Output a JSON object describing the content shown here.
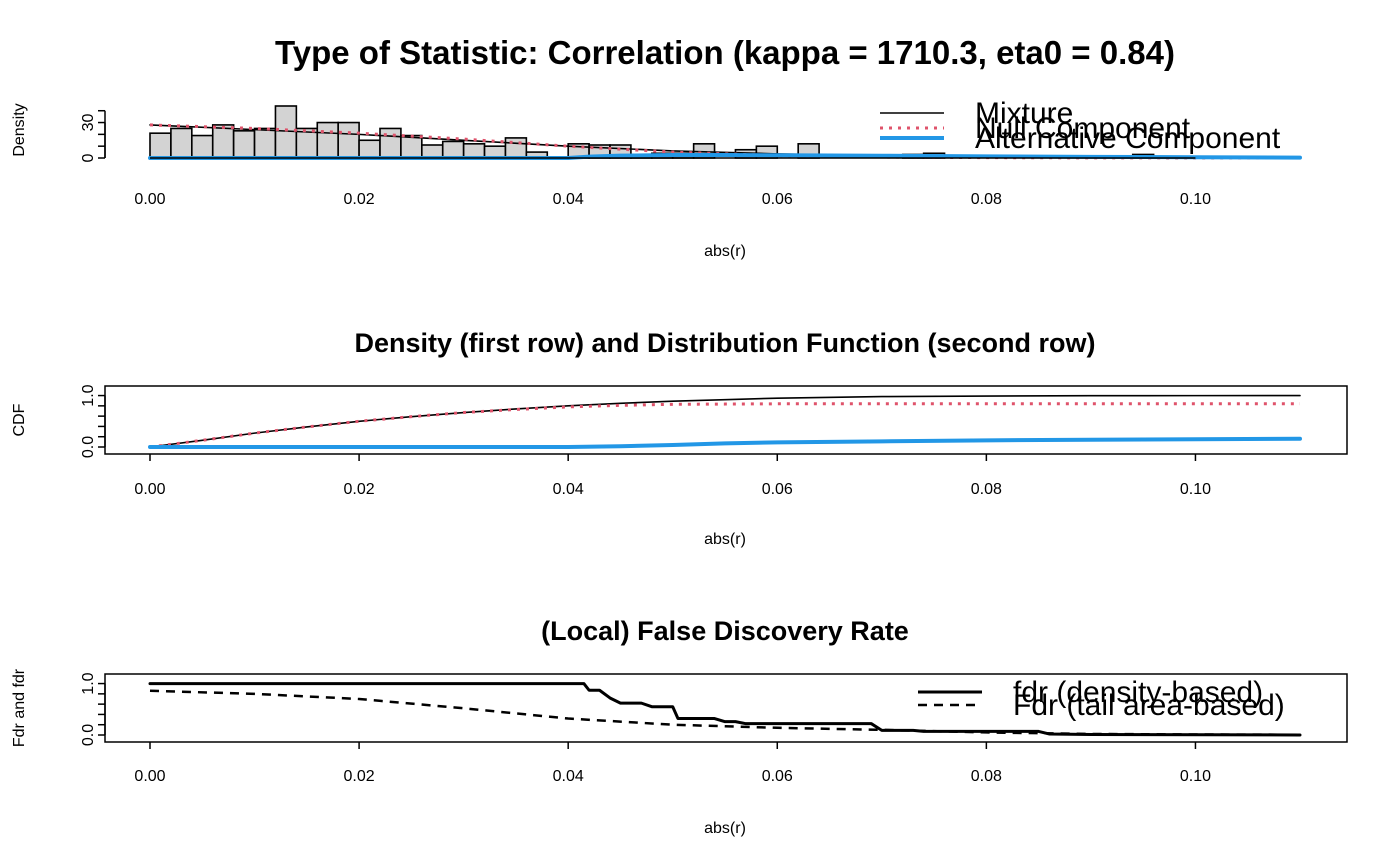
{
  "chart_data": [
    {
      "type": "bar",
      "title": "Type of Statistic: Correlation (kappa = 1710.3, eta0 = 0.84)",
      "xlabel": "abs(r)",
      "ylabel": "Density",
      "xlim": [
        0,
        0.11
      ],
      "ylim": [
        0,
        44
      ],
      "xticks": [
        0.0,
        0.02,
        0.04,
        0.06,
        0.08,
        0.1
      ],
      "xtick_labels": [
        "0.00",
        "0.02",
        "0.04",
        "0.06",
        "0.08",
        "0.10"
      ],
      "yticks": [
        0,
        30
      ],
      "ytick_labels": [
        "0",
        "30"
      ],
      "hist": {
        "bin_width": 0.002,
        "values": [
          21,
          25,
          19,
          28,
          23,
          25,
          44,
          25,
          30,
          30,
          15,
          25,
          19,
          11,
          14,
          12,
          10,
          17,
          5,
          0,
          12,
          11,
          11,
          3,
          4,
          4,
          12,
          0,
          7,
          10,
          0,
          12,
          0,
          0,
          0,
          0,
          3,
          4,
          0,
          0,
          0,
          0,
          0,
          0,
          0,
          0,
          0,
          3,
          0,
          0,
          0,
          0,
          0,
          0,
          1
        ]
      },
      "series": [
        {
          "name": "Mixture",
          "color": "#000000",
          "style": "solid",
          "x": [
            0,
            0.01,
            0.02,
            0.03,
            0.04,
            0.05,
            0.06,
            0.07,
            0.08,
            0.09,
            0.1,
            0.11
          ],
          "y": [
            28,
            24,
            20,
            15,
            10,
            6,
            3.5,
            2,
            1.2,
            0.6,
            0.3,
            0.15
          ]
        },
        {
          "name": "Null Component",
          "color": "#DF536B",
          "style": "dotted",
          "x": [
            0,
            0.01,
            0.02,
            0.03,
            0.04,
            0.05,
            0.06,
            0.07,
            0.08,
            0.09,
            0.1,
            0.11
          ],
          "y": [
            28,
            25,
            21,
            16,
            10,
            5,
            2,
            0.8,
            0.3,
            0.1,
            0.03,
            0.01
          ]
        },
        {
          "name": "Alternative Component",
          "color": "#2297E6",
          "style": "solid",
          "x": [
            0,
            0.04,
            0.042,
            0.045,
            0.05,
            0.055,
            0.06,
            0.07,
            0.08,
            0.09,
            0.1,
            0.11
          ],
          "y": [
            0,
            0,
            1.2,
            2,
            2.5,
            2.5,
            2.3,
            1.9,
            1.4,
            1,
            0.6,
            0.35
          ]
        }
      ],
      "legend": {
        "placement": "top-right",
        "entries": [
          "Mixture",
          "Null Component",
          "Alternative Component"
        ]
      }
    },
    {
      "type": "line",
      "title": "Density (first row) and Distribution Function (second row)",
      "xlabel": "abs(r)",
      "ylabel": "CDF",
      "xlim": [
        0,
        0.11
      ],
      "ylim": [
        0,
        1.05
      ],
      "xticks": [
        0.0,
        0.02,
        0.04,
        0.06,
        0.08,
        0.1
      ],
      "xtick_labels": [
        "0.00",
        "0.02",
        "0.04",
        "0.06",
        "0.08",
        "0.10"
      ],
      "yticks": [
        0.0,
        1.0
      ],
      "ytick_labels": [
        "0.0",
        "1.0"
      ],
      "series": [
        {
          "name": "Mixture",
          "color": "#000000",
          "style": "solid",
          "x": [
            0,
            0.005,
            0.01,
            0.015,
            0.02,
            0.025,
            0.03,
            0.035,
            0.04,
            0.045,
            0.05,
            0.055,
            0.06,
            0.07,
            0.08,
            0.09,
            0.1,
            0.11
          ],
          "y": [
            0,
            0.13,
            0.27,
            0.39,
            0.5,
            0.59,
            0.67,
            0.74,
            0.8,
            0.85,
            0.89,
            0.92,
            0.95,
            0.98,
            0.99,
            0.997,
            0.999,
            1.0
          ]
        },
        {
          "name": "Null Component",
          "color": "#DF536B",
          "style": "dotted",
          "x": [
            0,
            0.005,
            0.01,
            0.015,
            0.02,
            0.025,
            0.03,
            0.035,
            0.04,
            0.045,
            0.05,
            0.055,
            0.06,
            0.07,
            0.08,
            0.09,
            0.1,
            0.11
          ],
          "y": [
            0,
            0.13,
            0.27,
            0.39,
            0.5,
            0.59,
            0.67,
            0.73,
            0.78,
            0.81,
            0.83,
            0.835,
            0.84,
            0.84,
            0.84,
            0.84,
            0.84,
            0.84
          ]
        },
        {
          "name": "Alternative Component",
          "color": "#2297E6",
          "style": "solid",
          "x": [
            0,
            0.04,
            0.045,
            0.05,
            0.055,
            0.06,
            0.065,
            0.07,
            0.08,
            0.09,
            0.1,
            0.11
          ],
          "y": [
            0,
            0,
            0.015,
            0.04,
            0.07,
            0.09,
            0.1,
            0.11,
            0.13,
            0.14,
            0.15,
            0.16
          ]
        }
      ]
    },
    {
      "type": "line",
      "title": "(Local) False Discovery Rate",
      "xlabel": "abs(r)",
      "ylabel": "Fdr and fdr",
      "xlim": [
        0,
        0.11
      ],
      "ylim": [
        0,
        1.05
      ],
      "xticks": [
        0.0,
        0.02,
        0.04,
        0.06,
        0.08,
        0.1
      ],
      "xtick_labels": [
        "0.00",
        "0.02",
        "0.04",
        "0.06",
        "0.08",
        "0.10"
      ],
      "yticks": [
        0.0,
        1.0
      ],
      "ytick_labels": [
        "0.0",
        "1.0"
      ],
      "series": [
        {
          "name": "fdr (density-based)",
          "color": "#000000",
          "style": "solid",
          "width": 3,
          "x": [
            0,
            0.0415,
            0.042,
            0.043,
            0.044,
            0.045,
            0.047,
            0.048,
            0.05,
            0.0505,
            0.054,
            0.055,
            0.056,
            0.057,
            0.069,
            0.07,
            0.073,
            0.074,
            0.085,
            0.086,
            0.09,
            0.11
          ],
          "y": [
            1.0,
            1.0,
            0.87,
            0.87,
            0.72,
            0.62,
            0.62,
            0.55,
            0.55,
            0.32,
            0.32,
            0.26,
            0.26,
            0.22,
            0.22,
            0.09,
            0.09,
            0.07,
            0.07,
            0.02,
            0.01,
            0.0
          ]
        },
        {
          "name": "Fdr (tail area-based)",
          "color": "#000000",
          "style": "dashed",
          "width": 2.5,
          "x": [
            0,
            0.01,
            0.02,
            0.03,
            0.04,
            0.05,
            0.06,
            0.07,
            0.08,
            0.09,
            0.1,
            0.11
          ],
          "y": [
            0.86,
            0.8,
            0.7,
            0.52,
            0.32,
            0.2,
            0.14,
            0.1,
            0.05,
            0.02,
            0.01,
            0.005
          ]
        }
      ],
      "legend": {
        "placement": "top-right",
        "entries": [
          "fdr (density-based)",
          "Fdr (tail area-based)"
        ]
      }
    }
  ]
}
